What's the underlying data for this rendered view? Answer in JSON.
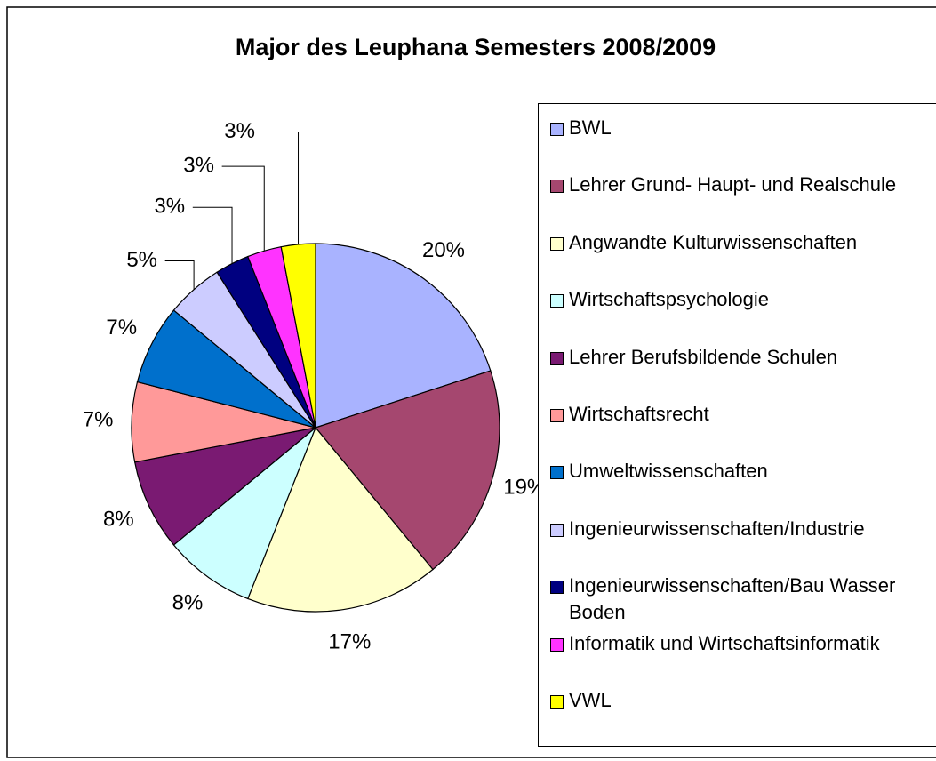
{
  "chart_data": {
    "type": "pie",
    "title": "Major des Leuphana Semesters 2008/2009",
    "categories": [
      "BWL",
      "Lehrer Grund- Haupt- und Realschule",
      "Angwandte Kulturwissenschaften",
      "Wirtschaftspsychologie",
      "Lehrer Berufsbildende Schulen",
      "Wirtschaftsrecht",
      "Umweltwissenschaften",
      "Ingenieurwissenschaften/Industrie",
      "Ingenieurwissenschaften/Bau Wasser Boden",
      "Informatik und Wirtschaftsinformatik",
      "VWL"
    ],
    "values": [
      20,
      19,
      17,
      8,
      8,
      7,
      7,
      5,
      3,
      3,
      3
    ],
    "value_labels": [
      "20%",
      "19%",
      "17%",
      "8%",
      "8%",
      "7%",
      "7%",
      "5%",
      "3%",
      "3%",
      "3%"
    ],
    "colors": [
      "#a9b3ff",
      "#a5476f",
      "#ffffcc",
      "#ccffff",
      "#7a1a72",
      "#ff9999",
      "#0070cc",
      "#ccccff",
      "#000080",
      "#ff33ff",
      "#ffff00"
    ],
    "legend": "right"
  }
}
